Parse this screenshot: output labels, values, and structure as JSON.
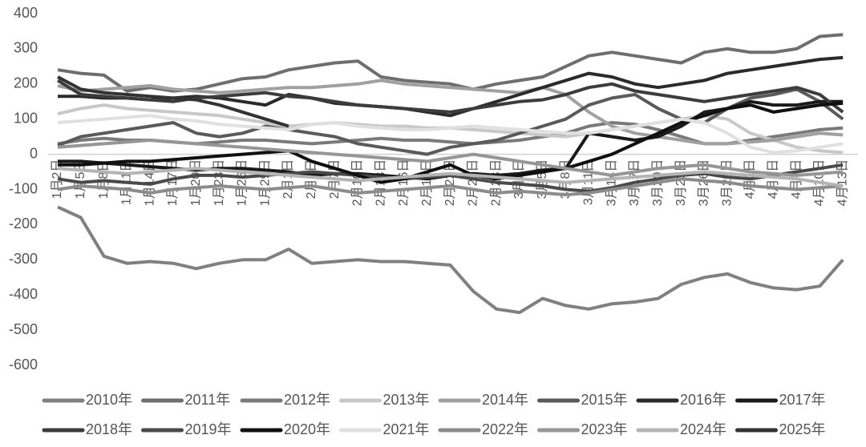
{
  "chart_data": {
    "type": "line",
    "categories": [
      "1月2日",
      "1月5日",
      "1月8日",
      "1月11日",
      "1月14日",
      "1月17日",
      "1月20日",
      "1月23日",
      "1月26日",
      "1月29日",
      "2月1日",
      "2月4日",
      "2月7日",
      "2月10日",
      "2月13日",
      "2月16日",
      "2月19日",
      "2月22日",
      "2月25日",
      "2月28日",
      "3月2日",
      "3月5日",
      "3月8日",
      "3月11日",
      "3月14日",
      "3月17日",
      "3月20日",
      "3月23日",
      "3月26日",
      "3月29日",
      "4月1日",
      "4月4日",
      "4月7日",
      "4月10日",
      "4月13日"
    ],
    "ylim": [
      -600,
      400
    ],
    "yticks": [
      -600,
      -500,
      -400,
      -300,
      -200,
      -100,
      0,
      100,
      200,
      300,
      400
    ],
    "series": [
      {
        "name": "2010年",
        "color": "#808080",
        "values": [
          -150,
          -180,
          -290,
          -310,
          -305,
          -310,
          -325,
          -310,
          -300,
          -300,
          -270,
          -310,
          -305,
          -300,
          -305,
          -305,
          -310,
          -315,
          -390,
          -440,
          -450,
          -410,
          -430,
          -440,
          -425,
          -420,
          -410,
          -370,
          -350,
          -340,
          -365,
          -380,
          -385,
          -375,
          -300
        ]
      },
      {
        "name": "2011年",
        "color": "#6e6e6e",
        "values": [
          240,
          230,
          225,
          180,
          190,
          180,
          185,
          200,
          215,
          220,
          240,
          250,
          260,
          265,
          220,
          210,
          205,
          200,
          185,
          200,
          210,
          220,
          250,
          280,
          290,
          280,
          270,
          260,
          290,
          300,
          290,
          290,
          300,
          335,
          340
        ]
      },
      {
        "name": "2012年",
        "color": "#7a7a7a",
        "values": [
          30,
          40,
          45,
          40,
          40,
          35,
          30,
          35,
          40,
          40,
          35,
          30,
          35,
          40,
          45,
          40,
          40,
          35,
          30,
          35,
          40,
          50,
          60,
          80,
          90,
          85,
          70,
          50,
          30,
          30,
          40,
          50,
          60,
          70,
          75
        ]
      },
      {
        "name": "2013年",
        "color": "#c8c8c8",
        "values": [
          115,
          130,
          140,
          130,
          125,
          120,
          115,
          110,
          100,
          90,
          80,
          85,
          90,
          85,
          80,
          80,
          75,
          75,
          70,
          65,
          60,
          55,
          50,
          60,
          70,
          80,
          90,
          100,
          110,
          100,
          60,
          40,
          20,
          10,
          5
        ]
      },
      {
        "name": "2014年",
        "color": "#a0a0a0",
        "values": [
          195,
          180,
          185,
          190,
          195,
          185,
          180,
          175,
          180,
          185,
          190,
          190,
          195,
          200,
          210,
          200,
          195,
          190,
          185,
          180,
          175,
          190,
          170,
          120,
          80,
          60,
          50,
          40,
          30,
          30,
          35,
          40,
          50,
          60,
          55
        ]
      },
      {
        "name": "2015年",
        "color": "#5a5a5a",
        "values": [
          25,
          50,
          60,
          70,
          80,
          90,
          60,
          50,
          60,
          80,
          70,
          60,
          50,
          30,
          20,
          10,
          0,
          20,
          30,
          40,
          60,
          80,
          100,
          140,
          160,
          170,
          130,
          100,
          90,
          130,
          160,
          170,
          185,
          150,
          100
        ]
      },
      {
        "name": "2016年",
        "color": "#2a2a2a",
        "values": [
          165,
          165,
          160,
          160,
          155,
          160,
          165,
          160,
          150,
          140,
          170,
          160,
          145,
          140,
          135,
          130,
          120,
          110,
          130,
          150,
          170,
          190,
          210,
          230,
          220,
          200,
          190,
          200,
          210,
          230,
          240,
          250,
          260,
          270,
          275
        ]
      },
      {
        "name": "2017年",
        "color": "#1a1a1a",
        "values": [
          -20,
          -20,
          -25,
          -30,
          -35,
          -40,
          -45,
          -40,
          -40,
          -45,
          -50,
          -60,
          -55,
          -55,
          -60,
          -65,
          -70,
          -60,
          -55,
          -60,
          -55,
          -45,
          -40,
          60,
          50,
          40,
          50,
          80,
          120,
          130,
          150,
          140,
          140,
          150,
          150
        ]
      },
      {
        "name": "2018年",
        "color": "#3c3c3c",
        "values": [
          210,
          170,
          165,
          160,
          155,
          150,
          160,
          165,
          170,
          175,
          165,
          160,
          150,
          140,
          135,
          130,
          125,
          120,
          130,
          140,
          150,
          155,
          170,
          190,
          200,
          180,
          170,
          160,
          150,
          160,
          170,
          180,
          190,
          170,
          120
        ]
      },
      {
        "name": "2019年",
        "color": "#4a4a4a",
        "values": [
          -70,
          -80,
          -75,
          -80,
          -85,
          -70,
          -60,
          -60,
          -65,
          -60,
          -55,
          -50,
          -55,
          -60,
          -65,
          -70,
          -65,
          -60,
          -70,
          -80,
          -85,
          -90,
          -100,
          -105,
          -95,
          -80,
          -70,
          -60,
          -55,
          -65,
          -70,
          -60,
          -50,
          -40,
          -30
        ]
      },
      {
        "name": "2020年",
        "color": "#101010",
        "values": [
          -30,
          -30,
          -25,
          -20,
          -20,
          -15,
          -10,
          -5,
          0,
          5,
          10,
          -20,
          -40,
          -60,
          -80,
          -70,
          -50,
          -30,
          -60,
          -70,
          -60,
          -50,
          -40,
          -20,
          0,
          30,
          60,
          90,
          110,
          130,
          140,
          120,
          130,
          140,
          145
        ]
      },
      {
        "name": "2021年",
        "color": "#e0e0e0",
        "values": [
          90,
          95,
          100,
          105,
          110,
          100,
          95,
          85,
          80,
          75,
          70,
          85,
          90,
          80,
          75,
          70,
          70,
          75,
          80,
          75,
          70,
          65,
          60,
          60,
          70,
          80,
          90,
          100,
          90,
          60,
          20,
          5,
          10,
          20,
          30
        ]
      },
      {
        "name": "2022年",
        "color": "#8c8c8c",
        "values": [
          -100,
          -90,
          -95,
          -100,
          -110,
          -100,
          -95,
          -90,
          -95,
          -100,
          -95,
          -90,
          -100,
          -110,
          -105,
          -100,
          -95,
          -90,
          -100,
          -110,
          -105,
          -110,
          -115,
          -110,
          -100,
          -90,
          -80,
          -70,
          -75,
          -80,
          -90,
          -95,
          -100,
          -95,
          -90
        ]
      },
      {
        "name": "2023年",
        "color": "#969696",
        "values": [
          20,
          25,
          30,
          35,
          40,
          35,
          30,
          25,
          20,
          15,
          10,
          5,
          0,
          -5,
          -10,
          -15,
          -20,
          -10,
          0,
          -10,
          -20,
          -30,
          -40,
          -50,
          -60,
          -50,
          -40,
          -35,
          -30,
          -40,
          -50,
          -55,
          -60,
          -55,
          -50
        ]
      },
      {
        "name": "2024年",
        "color": "#b4b4b4",
        "values": [
          -40,
          -45,
          -50,
          -55,
          -50,
          -45,
          -40,
          -45,
          -50,
          -55,
          -60,
          -65,
          -70,
          -75,
          -70,
          -65,
          -60,
          -55,
          -60,
          -65,
          -70,
          -75,
          -80,
          -75,
          -70,
          -65,
          -60,
          -55,
          -50,
          -55,
          -60,
          -65,
          -70,
          -80,
          -90
        ]
      },
      {
        "name": "2025年",
        "color": "#333333",
        "values": [
          220,
          185,
          175,
          170,
          165,
          160,
          155,
          140,
          120,
          100,
          80,
          null,
          null,
          null,
          null,
          null,
          null,
          null,
          null,
          null,
          null,
          null,
          null,
          null,
          null,
          null,
          null,
          null,
          null,
          null,
          null,
          null,
          null,
          null,
          null
        ]
      }
    ]
  }
}
